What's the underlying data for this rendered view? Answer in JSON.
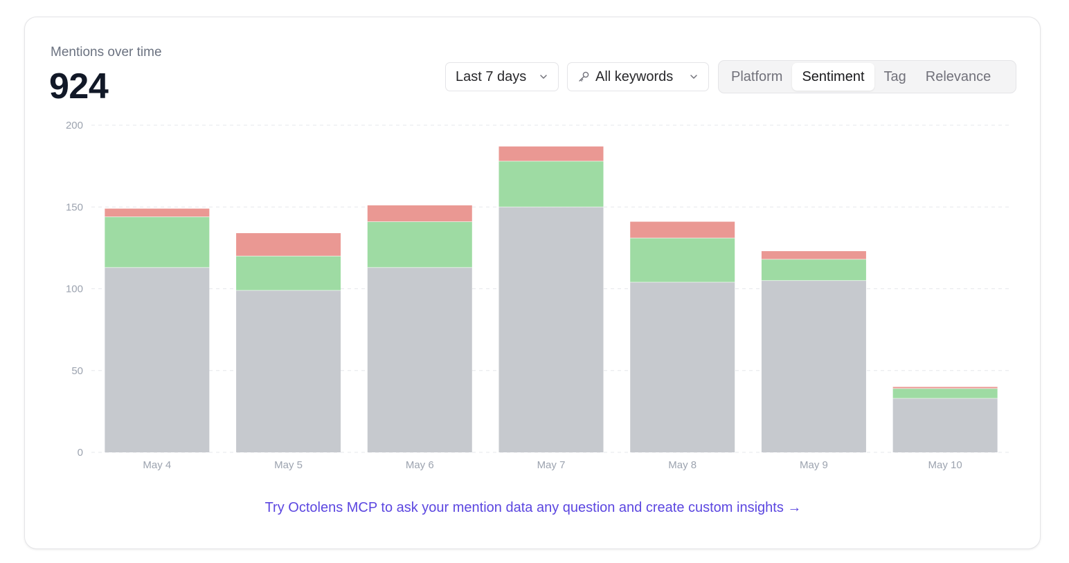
{
  "header": {
    "title": "Mentions over time",
    "total": "924"
  },
  "filters": {
    "date_range": "Last 7 days",
    "keywords": "All keywords"
  },
  "tabs": [
    {
      "label": "Platform",
      "active": false
    },
    {
      "label": "Sentiment",
      "active": true
    },
    {
      "label": "Tag",
      "active": false
    },
    {
      "label": "Relevance",
      "active": false
    }
  ],
  "icons": {
    "dropdown": "chevron-down-icon",
    "keywords": "key-icon"
  },
  "colors": {
    "neutral": "#c6c9ce",
    "positive": "#9edba3",
    "negative": "#ea9893",
    "cta": "#5b46e0"
  },
  "chart_data": {
    "type": "bar",
    "stacked": true,
    "categories": [
      "May 4",
      "May 5",
      "May 6",
      "May 7",
      "May 8",
      "May 9",
      "May 10"
    ],
    "series": [
      {
        "values": [
          113,
          99,
          113,
          150,
          104,
          105,
          33
        ],
        "color": "#c6c9ce"
      },
      {
        "values": [
          31,
          21,
          28,
          28,
          27,
          13,
          6
        ],
        "color": "#9edba3"
      },
      {
        "values": [
          5,
          14,
          10,
          9,
          10,
          5,
          1
        ],
        "color": "#ea9893"
      }
    ],
    "ylim": [
      0,
      200
    ],
    "yticks": [
      0,
      50,
      100,
      150,
      200
    ],
    "grid": true,
    "legend": "none"
  },
  "cta": {
    "text": "Try Octolens MCP to ask your mention data any question and create custom insights →"
  }
}
